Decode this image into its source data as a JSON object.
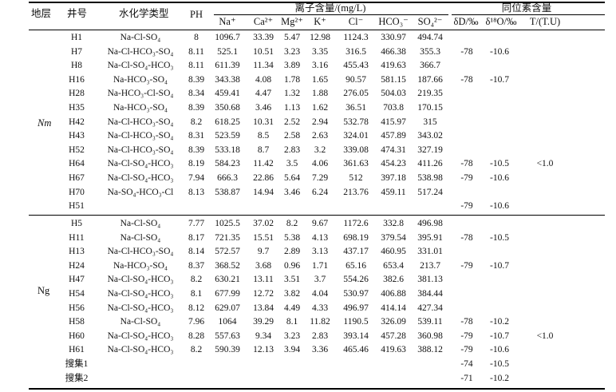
{
  "header": {
    "zone": "地层",
    "well": "井号",
    "type": "水化学类型",
    "ph": "PH",
    "ion_group": "离子含量/(mg/L)",
    "iso_group": "同位素含量",
    "ions": [
      "Na⁺",
      "Ca²⁺",
      "Mg²⁺",
      "K⁺",
      "Cl⁻",
      "HCO₃⁻",
      "SO₄²⁻"
    ],
    "isotopes": [
      "δD/‰",
      "δ¹⁸O/‰",
      "T/(T.U)"
    ]
  },
  "groups": [
    {
      "zone": "Nm",
      "rows": [
        {
          "well": "H1",
          "type": "Na-Cl-SO₄",
          "ph": "8",
          "na": "1096.7",
          "ca": "33.39",
          "mg": "5.47",
          "k": "12.98",
          "cl": "1124.3",
          "hco3": "330.97",
          "so4": "494.74",
          "dd": "",
          "do18": "",
          "t": ""
        },
        {
          "well": "H7",
          "type": "Na-Cl-HCO₃-SO₄",
          "ph": "8.11",
          "na": "525.1",
          "ca": "10.51",
          "mg": "3.23",
          "k": "3.35",
          "cl": "316.5",
          "hco3": "466.38",
          "so4": "355.3",
          "dd": "-78",
          "do18": "-10.6",
          "t": ""
        },
        {
          "well": "H8",
          "type": "Na-Cl-SO₄-HCO₃",
          "ph": "8.11",
          "na": "611.39",
          "ca": "11.34",
          "mg": "3.89",
          "k": "3.16",
          "cl": "455.43",
          "hco3": "419.63",
          "so4": "366.7",
          "dd": "",
          "do18": "",
          "t": ""
        },
        {
          "well": "H16",
          "type": "Na-HCO₃-SO₄",
          "ph": "8.39",
          "na": "343.38",
          "ca": "4.08",
          "mg": "1.78",
          "k": "1.65",
          "cl": "90.57",
          "hco3": "581.15",
          "so4": "187.66",
          "dd": "-78",
          "do18": "-10.7",
          "t": ""
        },
        {
          "well": "H28",
          "type": "Na-HCO₃-Cl-SO₄",
          "ph": "8.34",
          "na": "459.41",
          "ca": "4.47",
          "mg": "1.32",
          "k": "1.88",
          "cl": "276.05",
          "hco3": "504.03",
          "so4": "219.35",
          "dd": "",
          "do18": "",
          "t": ""
        },
        {
          "well": "H35",
          "type": "Na-HCO₃-SO₄",
          "ph": "8.39",
          "na": "350.68",
          "ca": "3.46",
          "mg": "1.13",
          "k": "1.62",
          "cl": "36.51",
          "hco3": "703.8",
          "so4": "170.15",
          "dd": "",
          "do18": "",
          "t": ""
        },
        {
          "well": "H42",
          "type": "Na-Cl-HCO₃-SO₄",
          "ph": "8.2",
          "na": "618.25",
          "ca": "10.31",
          "mg": "2.52",
          "k": "2.94",
          "cl": "532.78",
          "hco3": "415.97",
          "so4": "315",
          "dd": "",
          "do18": "",
          "t": ""
        },
        {
          "well": "H43",
          "type": "Na-Cl-HCO₃-SO₄",
          "ph": "8.31",
          "na": "523.59",
          "ca": "8.5",
          "mg": "2.58",
          "k": "2.63",
          "cl": "324.01",
          "hco3": "457.89",
          "so4": "343.02",
          "dd": "",
          "do18": "",
          "t": ""
        },
        {
          "well": "H52",
          "type": "Na-Cl-HCO₃-SO₄",
          "ph": "8.39",
          "na": "533.18",
          "ca": "8.7",
          "mg": "2.83",
          "k": "3.2",
          "cl": "339.08",
          "hco3": "474.31",
          "so4": "327.19",
          "dd": "",
          "do18": "",
          "t": ""
        },
        {
          "well": "H64",
          "type": "Na-Cl-SO₄-HCO₃",
          "ph": "8.19",
          "na": "584.23",
          "ca": "11.42",
          "mg": "3.5",
          "k": "4.06",
          "cl": "361.63",
          "hco3": "454.23",
          "so4": "411.26",
          "dd": "-78",
          "do18": "-10.5",
          "t": "<1.0"
        },
        {
          "well": "H67",
          "type": "Na-Cl-SO₄-HCO₃",
          "ph": "7.94",
          "na": "666.3",
          "ca": "22.86",
          "mg": "5.64",
          "k": "7.29",
          "cl": "512",
          "hco3": "397.18",
          "so4": "538.98",
          "dd": "-79",
          "do18": "-10.6",
          "t": ""
        },
        {
          "well": "H70",
          "type": "Na-SO₄-HCO₃-Cl",
          "ph": "8.13",
          "na": "538.87",
          "ca": "14.94",
          "mg": "3.46",
          "k": "6.24",
          "cl": "213.76",
          "hco3": "459.11",
          "so4": "517.24",
          "dd": "",
          "do18": "",
          "t": ""
        },
        {
          "well": "H51",
          "type": "",
          "ph": "",
          "na": "",
          "ca": "",
          "mg": "",
          "k": "",
          "cl": "",
          "hco3": "",
          "so4": "",
          "dd": "-79",
          "do18": "-10.6",
          "t": ""
        }
      ]
    },
    {
      "zone": "Ng",
      "rows": [
        {
          "well": "H5",
          "type": "Na-Cl-SO₄",
          "ph": "7.77",
          "na": "1025.5",
          "ca": "37.02",
          "mg": "8.2",
          "k": "9.67",
          "cl": "1172.6",
          "hco3": "332.8",
          "so4": "496.98",
          "dd": "",
          "do18": "",
          "t": ""
        },
        {
          "well": "H11",
          "type": "Na-Cl-SO₄",
          "ph": "8.17",
          "na": "721.35",
          "ca": "15.51",
          "mg": "5.38",
          "k": "4.13",
          "cl": "698.19",
          "hco3": "379.54",
          "so4": "395.91",
          "dd": "-78",
          "do18": "-10.5",
          "t": ""
        },
        {
          "well": "H13",
          "type": "Na-Cl-HCO₃-SO₄",
          "ph": "8.14",
          "na": "572.57",
          "ca": "9.7",
          "mg": "2.89",
          "k": "3.13",
          "cl": "437.17",
          "hco3": "460.95",
          "so4": "331.01",
          "dd": "",
          "do18": "",
          "t": ""
        },
        {
          "well": "H24",
          "type": "Na-HCO₃-SO₄",
          "ph": "8.37",
          "na": "368.52",
          "ca": "3.68",
          "mg": "0.96",
          "k": "1.71",
          "cl": "65.16",
          "hco3": "653.4",
          "so4": "213.7",
          "dd": "-79",
          "do18": "-10.7",
          "t": ""
        },
        {
          "well": "H47",
          "type": "Na-Cl-SO₄-HCO₃",
          "ph": "8.2",
          "na": "630.21",
          "ca": "13.11",
          "mg": "3.51",
          "k": "3.7",
          "cl": "554.26",
          "hco3": "382.6",
          "so4": "381.13",
          "dd": "",
          "do18": "",
          "t": ""
        },
        {
          "well": "H54",
          "type": "Na-Cl-SO₄-HCO₃",
          "ph": "8.1",
          "na": "677.99",
          "ca": "12.72",
          "mg": "3.82",
          "k": "4.04",
          "cl": "530.97",
          "hco3": "406.88",
          "so4": "384.44",
          "dd": "",
          "do18": "",
          "t": ""
        },
        {
          "well": "H56",
          "type": "Na-Cl-SO₄-HCO₃",
          "ph": "8.12",
          "na": "629.07",
          "ca": "13.84",
          "mg": "4.49",
          "k": "4.33",
          "cl": "496.97",
          "hco3": "414.14",
          "so4": "427.34",
          "dd": "",
          "do18": "",
          "t": ""
        },
        {
          "well": "H58",
          "type": "Na-Cl-SO₄",
          "ph": "7.96",
          "na": "1064",
          "ca": "39.29",
          "mg": "8.1",
          "k": "11.82",
          "cl": "1190.5",
          "hco3": "326.09",
          "so4": "539.11",
          "dd": "-78",
          "do18": "-10.2",
          "t": ""
        },
        {
          "well": "H60",
          "type": "Na-Cl-SO₄-HCO₃",
          "ph": "8.28",
          "na": "557.63",
          "ca": "9.34",
          "mg": "3.23",
          "k": "2.83",
          "cl": "393.14",
          "hco3": "457.28",
          "so4": "360.98",
          "dd": "-79",
          "do18": "-10.7",
          "t": "<1.0"
        },
        {
          "well": "H61",
          "type": "Na-Cl-SO₄-HCO₃",
          "ph": "8.2",
          "na": "590.39",
          "ca": "12.13",
          "mg": "3.94",
          "k": "3.36",
          "cl": "465.46",
          "hco3": "419.63",
          "so4": "388.12",
          "dd": "-79",
          "do18": "-10.6",
          "t": ""
        },
        {
          "well": "搜集1",
          "type": "",
          "ph": "",
          "na": "",
          "ca": "",
          "mg": "",
          "k": "",
          "cl": "",
          "hco3": "",
          "so4": "",
          "dd": "-74",
          "do18": "-10.5",
          "t": ""
        },
        {
          "well": "搜集2",
          "type": "",
          "ph": "",
          "na": "",
          "ca": "",
          "mg": "",
          "k": "",
          "cl": "",
          "hco3": "",
          "so4": "",
          "dd": "-71",
          "do18": "-10.2",
          "t": ""
        }
      ]
    }
  ]
}
